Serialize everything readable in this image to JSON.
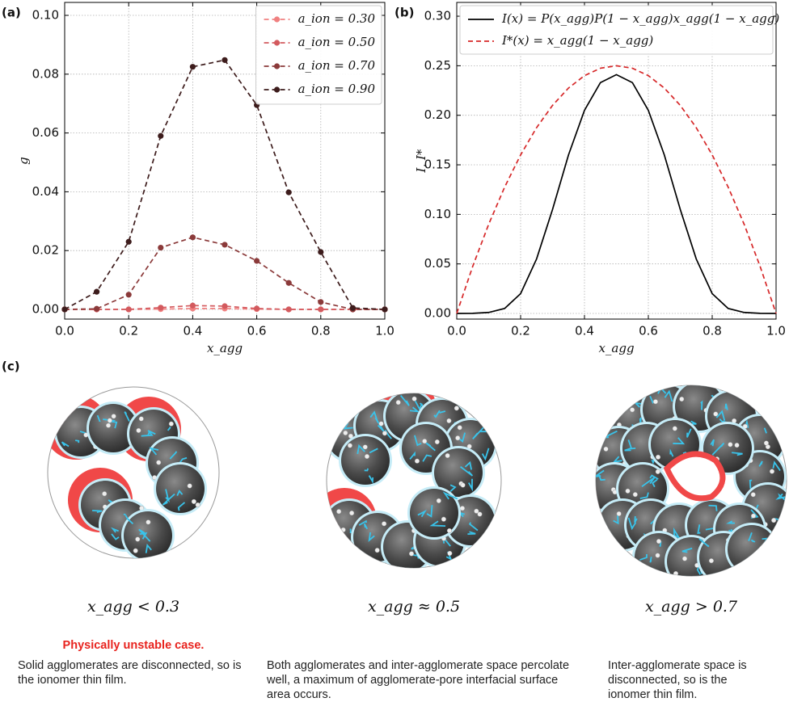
{
  "panels": [
    "(a)",
    "(b)",
    "(c)"
  ],
  "chart_data": [
    {
      "type": "line",
      "xlabel": "x_agg",
      "ylabel": "g",
      "x": [
        0.0,
        0.1,
        0.2,
        0.3,
        0.4,
        0.5,
        0.6,
        0.7,
        0.8,
        0.9,
        1.0
      ],
      "series": [
        {
          "name": "a_ion = 0.30",
          "color": "#f08080",
          "dash": true,
          "marker": true,
          "values": [
            0,
            0,
            0,
            0.0001,
            0.0003,
            0.0003,
            0.0001,
            0,
            0,
            0,
            0
          ]
        },
        {
          "name": "a_ion = 0.50",
          "color": "#d35a5e",
          "dash": true,
          "marker": true,
          "values": [
            0,
            0,
            0,
            0.0006,
            0.0013,
            0.0011,
            0.0003,
            0,
            0,
            0,
            0
          ]
        },
        {
          "name": "a_ion = 0.70",
          "color": "#8b3a3a",
          "dash": true,
          "marker": true,
          "values": [
            0,
            0.0002,
            0.005,
            0.021,
            0.0245,
            0.022,
            0.0165,
            0.009,
            0.0025,
            0,
            0
          ]
        },
        {
          "name": "a_ion = 0.90",
          "color": "#3d1c1c",
          "dash": true,
          "marker": true,
          "values": [
            0,
            0.006,
            0.023,
            0.059,
            0.0825,
            0.0848,
            0.0695,
            0.0398,
            0.0195,
            0.0005,
            0
          ]
        }
      ],
      "xlim": [
        0,
        1
      ],
      "ylim": [
        -0.0033,
        0.1044
      ],
      "xticks": [
        {
          "value": 0,
          "label": "0.0"
        },
        {
          "value": 0.2,
          "label": "0.2"
        },
        {
          "value": 0.4,
          "label": "0.4"
        },
        {
          "value": 0.6,
          "label": "0.6"
        },
        {
          "value": 0.8,
          "label": "0.8"
        },
        {
          "value": 1,
          "label": "1.0"
        }
      ],
      "yticks": [
        {
          "value": 0,
          "label": "0.00"
        },
        {
          "value": 0.02,
          "label": "0.02"
        },
        {
          "value": 0.04,
          "label": "0.04"
        },
        {
          "value": 0.06,
          "label": "0.06"
        },
        {
          "value": 0.08,
          "label": "0.08"
        },
        {
          "value": 0.1,
          "label": "0.10"
        }
      ],
      "grid": true,
      "legend": "upper right"
    },
    {
      "type": "line",
      "xlabel": "x_agg",
      "ylabel": "I, I*",
      "x": [
        0,
        0.05,
        0.1,
        0.15,
        0.2,
        0.25,
        0.3,
        0.35,
        0.4,
        0.45,
        0.5,
        0.55,
        0.6,
        0.65,
        0.7,
        0.75,
        0.8,
        0.85,
        0.9,
        0.95,
        1
      ],
      "series": [
        {
          "name": "I(x)  = P(x_agg)P(1 − x_agg)x_agg(1 − x_agg)",
          "color": "#000000",
          "dash": false,
          "marker": false,
          "values": [
            0,
            0.0001,
            0.001,
            0.005,
            0.02,
            0.055,
            0.105,
            0.16,
            0.205,
            0.233,
            0.241,
            0.233,
            0.205,
            0.16,
            0.105,
            0.055,
            0.02,
            0.005,
            0.001,
            0.0001,
            0
          ]
        },
        {
          "name": "I*(x) = x_agg(1 − x_agg)",
          "color": "#d62728",
          "dash": true,
          "marker": false,
          "values": [
            0,
            0.0475,
            0.09,
            0.1275,
            0.16,
            0.1875,
            0.21,
            0.2275,
            0.24,
            0.2475,
            0.25,
            0.2475,
            0.24,
            0.2275,
            0.21,
            0.1875,
            0.16,
            0.1275,
            0.09,
            0.0475,
            0
          ]
        }
      ],
      "xlim": [
        0,
        1
      ],
      "ylim": [
        -0.0057,
        0.3139
      ],
      "xticks": [
        {
          "value": 0,
          "label": "0.0"
        },
        {
          "value": 0.2,
          "label": "0.2"
        },
        {
          "value": 0.4,
          "label": "0.4"
        },
        {
          "value": 0.6,
          "label": "0.6"
        },
        {
          "value": 0.8,
          "label": "0.8"
        },
        {
          "value": 1,
          "label": "1.0"
        }
      ],
      "yticks": [
        {
          "value": 0,
          "label": "0.00"
        },
        {
          "value": 0.05,
          "label": "0.05"
        },
        {
          "value": 0.1,
          "label": "0.10"
        },
        {
          "value": 0.15,
          "label": "0.15"
        },
        {
          "value": 0.2,
          "label": "0.20"
        },
        {
          "value": 0.25,
          "label": "0.25"
        },
        {
          "value": 0.3,
          "label": "0.30"
        }
      ],
      "grid": true,
      "legend": "upper left"
    }
  ],
  "illustrations": [
    {
      "condition": "x_agg < 0.3",
      "highlight": "Physically unstable case.",
      "description": "Solid agglomerates are disconnected, so is the ionomer thin film."
    },
    {
      "condition": "x_agg ≈ 0.5",
      "description": "Both agglomerates and inter-agglomerate space percolate well, a maximum of agglomerate-pore interfacial surface area occurs."
    },
    {
      "condition": "x_agg > 0.7",
      "description": "Inter-agglomerate space is disconnected, so is the ionomer thin film."
    }
  ]
}
